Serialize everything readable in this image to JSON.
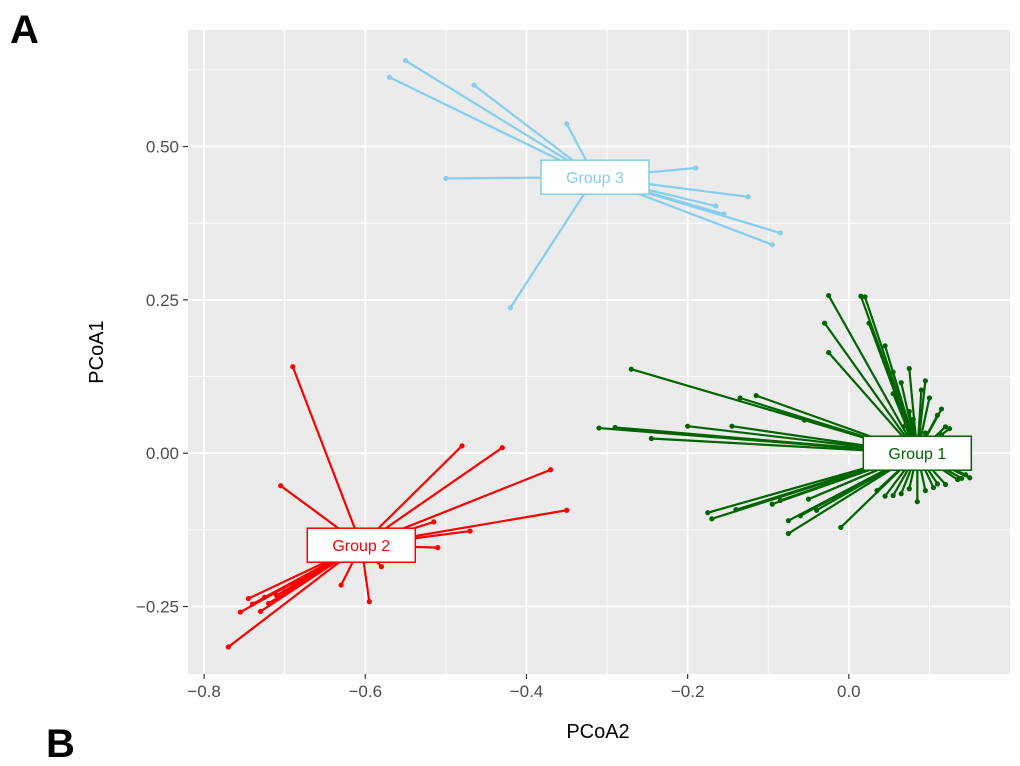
{
  "panel_letters": {
    "a": "A",
    "b": "B"
  },
  "chart_data": {
    "type": "scatter",
    "title": "",
    "xlabel": "PCoA2",
    "ylabel": "PCoA1",
    "xlim": [
      -0.82,
      0.2
    ],
    "ylim": [
      -0.36,
      0.69
    ],
    "xticks": [
      -0.8,
      -0.6,
      -0.4,
      -0.2,
      0.0
    ],
    "xtick_labels": [
      "−0.8",
      "−0.6",
      "−0.4",
      "−0.2",
      "0.0"
    ],
    "yticks": [
      -0.25,
      0.0,
      0.25,
      0.5
    ],
    "ytick_labels": [
      "−0.25",
      "0.00",
      "0.25",
      "0.50"
    ],
    "grid": true,
    "background": "#ebebeb",
    "series": [
      {
        "name": "Group 1",
        "color": "#006400",
        "centroid": [
          0.085,
          0.0
        ],
        "points": [
          [
            0.13,
            0.02
          ],
          [
            -0.27,
            0.137
          ],
          [
            -0.31,
            0.041
          ],
          [
            -0.29,
            0.042
          ],
          [
            -0.245,
            0.024
          ],
          [
            -0.2,
            0.044
          ],
          [
            -0.145,
            0.044
          ],
          [
            -0.135,
            0.09
          ],
          [
            -0.115,
            0.094
          ],
          [
            -0.055,
            0.054
          ],
          [
            -0.175,
            -0.097
          ],
          [
            -0.17,
            -0.107
          ],
          [
            -0.14,
            -0.092
          ],
          [
            -0.095,
            -0.083
          ],
          [
            -0.085,
            -0.077
          ],
          [
            -0.075,
            -0.131
          ],
          [
            -0.075,
            -0.11
          ],
          [
            -0.06,
            -0.102
          ],
          [
            -0.05,
            -0.075
          ],
          [
            -0.04,
            -0.093
          ],
          [
            -0.01,
            -0.121
          ],
          [
            -0.03,
            0.212
          ],
          [
            -0.025,
            0.164
          ],
          [
            -0.025,
            0.257
          ],
          [
            0.015,
            0.256
          ],
          [
            0.02,
            0.255
          ],
          [
            0.025,
            0.212
          ],
          [
            0.045,
            0.175
          ],
          [
            0.055,
            0.132
          ],
          [
            0.055,
            0.097
          ],
          [
            0.065,
            0.115
          ],
          [
            0.065,
            0.077
          ],
          [
            0.075,
            0.138
          ],
          [
            0.075,
            0.068
          ],
          [
            0.09,
            0.103
          ],
          [
            0.095,
            0.033
          ],
          [
            0.095,
            0.118
          ],
          [
            0.1,
            0.09
          ],
          [
            0.11,
            0.062
          ],
          [
            0.115,
            0.072
          ],
          [
            0.12,
            0.043
          ],
          [
            0.125,
            0.022
          ],
          [
            0.13,
            0.006
          ],
          [
            0.14,
            -0.041
          ],
          [
            0.145,
            -0.035
          ],
          [
            0.15,
            -0.04
          ],
          [
            0.11,
            -0.05
          ],
          [
            0.105,
            -0.056
          ],
          [
            0.095,
            -0.061
          ],
          [
            0.085,
            -0.079
          ],
          [
            0.075,
            -0.058
          ],
          [
            0.065,
            -0.066
          ],
          [
            0.055,
            -0.069
          ],
          [
            0.045,
            -0.07
          ],
          [
            0.035,
            -0.061
          ],
          [
            0.12,
            -0.051
          ],
          [
            0.135,
            -0.043
          ],
          [
            0.045,
            -0.005
          ],
          [
            0.06,
            0.015
          ],
          [
            0.07,
            0.045
          ],
          [
            0.08,
            0.055
          ],
          [
            0.09,
            0.025
          ],
          [
            0.1,
            0.005
          ],
          [
            0.105,
            -0.02
          ],
          [
            0.115,
            0.03
          ],
          [
            0.14,
            0.0
          ],
          [
            0.125,
            0.04
          ]
        ]
      },
      {
        "name": "Group 2",
        "color": "#ff0000",
        "centroid": [
          -0.605,
          -0.15
        ],
        "points": [
          [
            -0.69,
            0.141
          ],
          [
            -0.48,
            0.012
          ],
          [
            -0.43,
            0.009
          ],
          [
            -0.37,
            -0.027
          ],
          [
            -0.35,
            -0.093
          ],
          [
            -0.47,
            -0.127
          ],
          [
            -0.51,
            -0.154
          ],
          [
            -0.515,
            -0.112
          ],
          [
            -0.58,
            -0.185
          ],
          [
            -0.595,
            -0.242
          ],
          [
            -0.63,
            -0.215
          ],
          [
            -0.705,
            -0.053
          ],
          [
            -0.77,
            -0.316
          ],
          [
            -0.755,
            -0.259
          ],
          [
            -0.745,
            -0.237
          ],
          [
            -0.73,
            -0.258
          ],
          [
            -0.72,
            -0.245
          ],
          [
            -0.71,
            -0.232
          ],
          [
            -0.7,
            -0.226
          ],
          [
            -0.69,
            -0.213
          ],
          [
            -0.74,
            -0.246
          ],
          [
            -0.725,
            -0.235
          ]
        ]
      },
      {
        "name": "Group 3",
        "color": "#87ceeb",
        "centroid": [
          -0.315,
          0.45
        ],
        "points": [
          [
            -0.55,
            0.64
          ],
          [
            -0.57,
            0.613
          ],
          [
            -0.465,
            0.6
          ],
          [
            -0.35,
            0.537
          ],
          [
            -0.5,
            0.448
          ],
          [
            -0.42,
            0.237
          ],
          [
            -0.19,
            0.465
          ],
          [
            -0.165,
            0.403
          ],
          [
            -0.155,
            0.39
          ],
          [
            -0.125,
            0.418
          ],
          [
            -0.095,
            0.34
          ],
          [
            -0.085,
            0.359
          ]
        ]
      }
    ]
  }
}
